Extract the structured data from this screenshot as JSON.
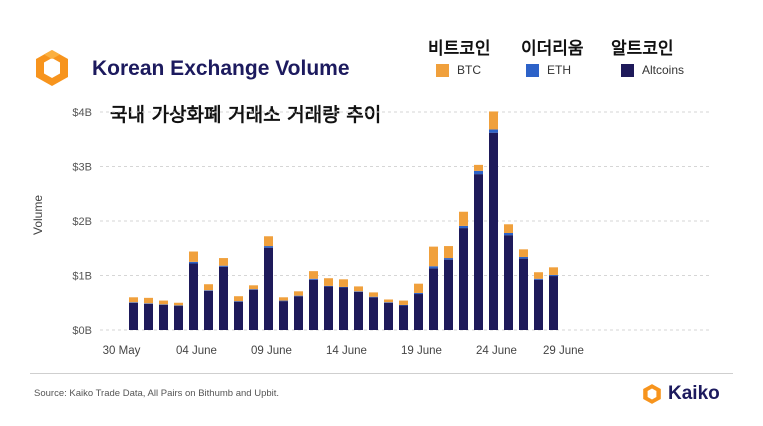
{
  "title": "Korean Exchange Volume",
  "subtitle": "국내 가상화폐 거래소 거래량 추이",
  "legend": [
    {
      "kr": "비트코인",
      "label": "BTC",
      "color": "#f0a03c"
    },
    {
      "kr": "이더리움",
      "label": "ETH",
      "color": "#2d62c8"
    },
    {
      "kr": "알트코인",
      "label": "Altcoins",
      "color": "#1e1a5a"
    }
  ],
  "source": "Source: Kaiko Trade Data, All Pairs on Bithumb and Upbit.",
  "brand": "Kaiko",
  "chart_data": {
    "type": "bar",
    "stacked": true,
    "ylabel": "Volume",
    "ylim": [
      0,
      4
    ],
    "yticks": [
      "$0B",
      "$1B",
      "$2B",
      "$3B",
      "$4B"
    ],
    "x_tick_labels": [
      "30 May",
      "04 June",
      "09 June",
      "14 June",
      "19 June",
      "24 June",
      "29 June"
    ],
    "x_tick_index": [
      0,
      5,
      10,
      15,
      20,
      25,
      30
    ],
    "grid": true,
    "series": [
      {
        "name": "Altcoins",
        "values": [
          0.5,
          0.48,
          0.46,
          0.44,
          1.22,
          0.72,
          1.16,
          0.52,
          0.74,
          1.51,
          0.53,
          0.62,
          0.92,
          0.8,
          0.78,
          0.7,
          0.6,
          0.5,
          0.45,
          0.66,
          1.13,
          1.29,
          1.87,
          2.86,
          3.62,
          1.74,
          1.31,
          0.92,
          0.99
        ]
      },
      {
        "name": "ETH",
        "values": [
          0.01,
          0.01,
          0.01,
          0.01,
          0.03,
          0.01,
          0.02,
          0.01,
          0.01,
          0.03,
          0.01,
          0.01,
          0.02,
          0.01,
          0.01,
          0.01,
          0.01,
          0.01,
          0.01,
          0.02,
          0.04,
          0.03,
          0.04,
          0.06,
          0.06,
          0.04,
          0.03,
          0.02,
          0.02
        ]
      },
      {
        "name": "BTC",
        "values": [
          0.09,
          0.1,
          0.07,
          0.05,
          0.19,
          0.11,
          0.14,
          0.09,
          0.07,
          0.18,
          0.06,
          0.08,
          0.14,
          0.14,
          0.14,
          0.09,
          0.08,
          0.05,
          0.08,
          0.17,
          0.36,
          0.22,
          0.26,
          0.11,
          0.33,
          0.16,
          0.14,
          0.12,
          0.14
        ]
      }
    ]
  }
}
